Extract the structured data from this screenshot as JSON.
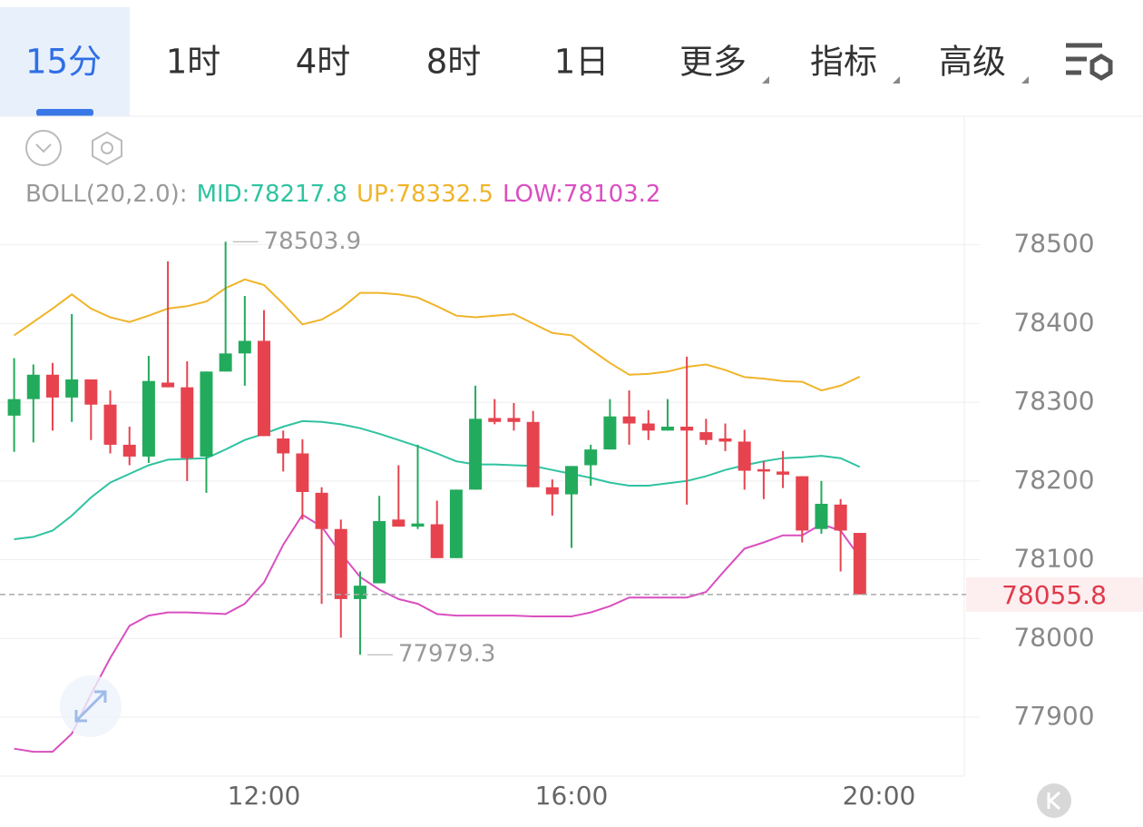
{
  "tabs": [
    "15分",
    "1时",
    "4时",
    "8时",
    "1日",
    "更多",
    "指标",
    "高级"
  ],
  "chart_data": {
    "type": "candlestick",
    "indicator": "BOLL(20,2.0):",
    "x": [
      8.75,
      9,
      9.25,
      9.5,
      9.75,
      10,
      10.25,
      10.5,
      10.75,
      11,
      11.25,
      11.5,
      11.75,
      12,
      12.25,
      12.5,
      12.75,
      13,
      13.25,
      13.5,
      13.75,
      14,
      14.25,
      14.5,
      14.75,
      15,
      15.25,
      15.5,
      15.75,
      16,
      16.25,
      16.5,
      16.75,
      17,
      17.25,
      17.5,
      17.75,
      18,
      18.25,
      18.5,
      18.75,
      19,
      19.25,
      19.5,
      19.75
    ],
    "open": [
      78283,
      78304,
      78335,
      78306,
      78329,
      78297,
      78246,
      78231,
      78325,
      78319,
      78231,
      78339,
      78362,
      78378,
      78254,
      78235,
      78185,
      78139,
      78050,
      78070,
      78151,
      78142,
      78145,
      78102,
      78189,
      78280,
      78280,
      78275,
      78192,
      78183,
      78220,
      78240,
      78282,
      78273,
      78264,
      78269,
      78262,
      78254,
      78250,
      78215,
      78212,
      78206,
      78139,
      78170,
      78134
    ],
    "high": [
      78356,
      78348,
      78350,
      78412,
      78329,
      78315,
      78269,
      78359,
      78479,
      78352,
      78339,
      78503.9,
      78435,
      78417,
      78264,
      78253,
      78192,
      78151,
      78085,
      78181,
      78220,
      78246,
      78175,
      78189,
      78321,
      78304,
      78299,
      78289,
      78202,
      78219,
      78246,
      78304,
      78315,
      78290,
      78304,
      78358,
      78279,
      78273,
      78265,
      78225,
      78238,
      78206,
      78200,
      78177,
      78134
    ],
    "low": [
      78237,
      78249,
      78264,
      78275,
      78252,
      78235,
      78220,
      78223,
      78319,
      78200,
      78185,
      78339,
      78321,
      78257,
      78212,
      78151,
      78044,
      78001,
      77979.3,
      78070,
      78142,
      78139,
      78102,
      78102,
      78189,
      78272,
      78264,
      78192,
      78156,
      78115,
      78194,
      78240,
      78246,
      78252,
      78264,
      78170,
      78246,
      78238,
      78189,
      78177,
      78191,
      78122,
      78133,
      78085,
      78055.8
    ],
    "close": [
      78304,
      78335,
      78306,
      78329,
      78297,
      78246,
      78231,
      78327,
      78319,
      78229,
      78339,
      78362,
      78378,
      78257,
      78235,
      78186,
      78139,
      78050,
      78067,
      78149,
      78142,
      78146,
      78102,
      78189,
      78279,
      78275,
      78275,
      78192,
      78183,
      78219,
      78240,
      78282,
      78273,
      78264,
      78269,
      78264,
      78252,
      78250,
      78213,
      78212,
      78208,
      78137,
      78171,
      78137,
      78055.8
    ],
    "up_color": "#22ab5c",
    "down_color": "#e6434f",
    "series": [
      {
        "name": "MID:78217.8",
        "color": "#2fc3a0",
        "values": [
          78126,
          78129,
          78137,
          78156,
          78179,
          78198,
          78209,
          78220,
          78227,
          78228,
          78229,
          78240,
          78252,
          78260,
          78269,
          78276,
          78275,
          78272,
          78267,
          78260,
          78252,
          78244,
          78235,
          78225,
          78221,
          78221,
          78220,
          78219,
          78214,
          78209,
          78204,
          78198,
          78194,
          78194,
          78197,
          78200,
          78206,
          78214,
          78220,
          78225,
          78229,
          78230,
          78232,
          78229,
          78217.8
        ]
      },
      {
        "name": "UP:78332.5",
        "color": "#f0b429",
        "values": [
          78385,
          78402,
          78419,
          78437,
          78419,
          78408,
          78402,
          78410,
          78419,
          78422,
          78428,
          78445,
          78456,
          78449,
          78425,
          78399,
          78405,
          78419,
          78439,
          78439,
          78437,
          78433,
          78422,
          78410,
          78408,
          78410,
          78412,
          78400,
          78388,
          78385,
          78367,
          78350,
          78335,
          78336,
          78339,
          78345,
          78348,
          78341,
          78332,
          78330,
          78327,
          78326,
          78315,
          78321,
          78332.5
        ]
      },
      {
        "name": "LOW:78103.2",
        "color": "#d94fc0",
        "values": [
          77860,
          77856,
          77856,
          77879,
          77929,
          77975,
          78016,
          78029,
          78033,
          78033,
          78032,
          78031,
          78044,
          78071,
          78119,
          78157,
          78142,
          78108,
          78078,
          78062,
          78050,
          78044,
          78031,
          78029,
          78029,
          78029,
          78029,
          78028,
          78028,
          78028,
          78033,
          78041,
          78052,
          78052,
          78052,
          78052,
          78059,
          78087,
          78114,
          78122,
          78131,
          78131,
          78145,
          78137,
          78103.2
        ]
      }
    ],
    "last_price": 78055.8,
    "xlim": [
      8.566,
      21.109
    ],
    "xticks": [
      {
        "value": 12,
        "label": "12:00"
      },
      {
        "value": 16,
        "label": "16:00"
      },
      {
        "value": 20,
        "label": "20:00"
      }
    ],
    "ylim": [
      77825,
      78540
    ],
    "yticks": [
      77900,
      78000,
      78100,
      78200,
      78300,
      78400,
      78500
    ],
    "grid": true
  }
}
